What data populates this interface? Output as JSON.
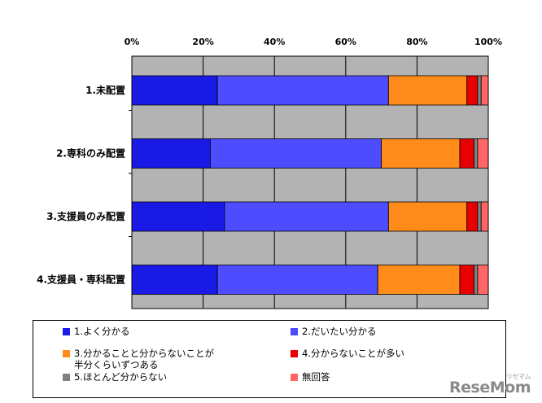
{
  "chart_data": {
    "type": "bar",
    "orientation": "horizontal",
    "stacked": true,
    "percent_scale": true,
    "categories": [
      "1.未配置",
      "2.専科のみ配置",
      "3.支援員のみ配置",
      "4.支援員・専科配置"
    ],
    "series": [
      {
        "name": "1.よく分かる",
        "color": "#1a1ae6",
        "values": [
          24,
          22,
          26,
          24
        ]
      },
      {
        "name": "2.だいたい分かる",
        "color": "#4d4dff",
        "values": [
          48,
          48,
          46,
          45
        ]
      },
      {
        "name": "3.分かることと分からないことが半分くらいずつある",
        "color": "#ff8c1a",
        "values": [
          22,
          22,
          22,
          23
        ]
      },
      {
        "name": "4.分からないことが多い",
        "color": "#e60000",
        "values": [
          3,
          4,
          3,
          4
        ]
      },
      {
        "name": "5.ほとんど分からない",
        "color": "#808080",
        "values": [
          1,
          1,
          1,
          1
        ]
      },
      {
        "name": "無回答",
        "color": "#ff6666",
        "values": [
          2,
          3,
          2,
          3
        ]
      }
    ],
    "xlim": [
      0,
      100
    ],
    "xticks": [
      "0%",
      "20%",
      "40%",
      "60%",
      "80%",
      "100%"
    ],
    "grid": true,
    "legend_position": "bottom"
  },
  "legend": {
    "items": [
      {
        "line1": "1.よく分かる",
        "line2": "",
        "color": "#1a1ae6"
      },
      {
        "line1": "2.だいたい分かる",
        "line2": "",
        "color": "#4d4dff"
      },
      {
        "line1": "3.分かることと分からないことが",
        "line2": "半分くらいずつある",
        "color": "#ff8c1a"
      },
      {
        "line1": "4.分からないことが多い",
        "line2": "",
        "color": "#e60000"
      },
      {
        "line1": "5.ほとんど分からない",
        "line2": "",
        "color": "#808080"
      },
      {
        "line1": "無回答",
        "line2": "",
        "color": "#ff6666"
      }
    ]
  },
  "watermark": {
    "text": "ReseMom",
    "sub": "リセマム"
  }
}
